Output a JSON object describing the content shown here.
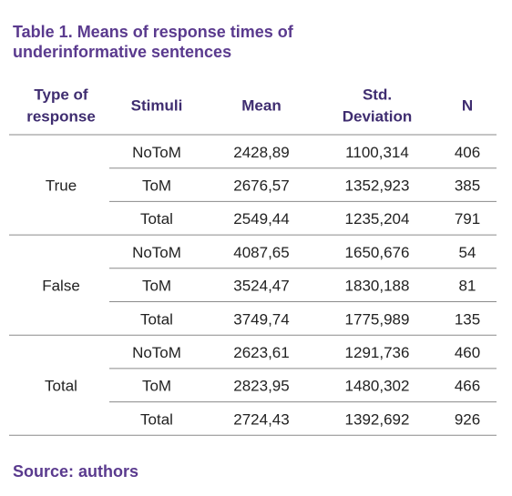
{
  "title": [
    "Table 1. Means of response times of",
    "underinformative sentences"
  ],
  "table": {
    "header": [
      [
        "Type of",
        "response"
      ],
      [
        "Stimuli"
      ],
      [
        "Mean"
      ],
      [
        "Std.",
        "Deviation"
      ],
      [
        "N"
      ]
    ],
    "groups": [
      {
        "label": "True",
        "rows": [
          [
            "NoToM",
            "2428,89",
            "1100,314",
            "406"
          ],
          [
            "ToM",
            "2676,57",
            "1352,923",
            "385"
          ],
          [
            "Total",
            "2549,44",
            "1235,204",
            "791"
          ]
        ]
      },
      {
        "label": "False",
        "rows": [
          [
            "NoToM",
            "4087,65",
            "1650,676",
            "54"
          ],
          [
            "ToM",
            "3524,47",
            "1830,188",
            "81"
          ],
          [
            "Total",
            "3749,74",
            "1775,989",
            "135"
          ]
        ]
      },
      {
        "label": "Total",
        "rows": [
          [
            "NoToM",
            "2623,61",
            "1291,736",
            "460"
          ],
          [
            "ToM",
            "2823,95",
            "1480,302",
            "466"
          ],
          [
            "Total",
            "2724,43",
            "1392,692",
            "926"
          ]
        ]
      }
    ]
  },
  "source": "Source: authors"
}
